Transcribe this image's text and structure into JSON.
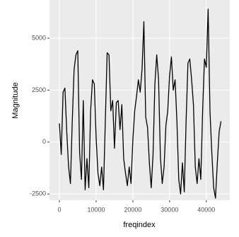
{
  "chart_data": {
    "type": "line",
    "x_label": "freqindex",
    "y_label": "Magnitude",
    "x": [
      0,
      500,
      1000,
      1500,
      2000,
      2500,
      3000,
      3500,
      4000,
      4500,
      5000,
      5500,
      6000,
      6500,
      7000,
      7500,
      8000,
      8500,
      9000,
      9500,
      10000,
      10500,
      11000,
      11500,
      12000,
      12500,
      13000,
      13500,
      14000,
      14500,
      15000,
      15500,
      16000,
      16500,
      17000,
      17500,
      18000,
      18500,
      19000,
      19500,
      20000,
      20500,
      21000,
      21500,
      22000,
      22500,
      23000,
      23500,
      24000,
      24500,
      25000,
      25500,
      26000,
      26500,
      27000,
      27500,
      28000,
      28500,
      29000,
      29500,
      30000,
      30500,
      31000,
      31500,
      32000,
      32500,
      33000,
      33500,
      34000,
      34500,
      35000,
      35500,
      36000,
      36500,
      37000,
      37500,
      38000,
      38500,
      39000,
      39500,
      40000,
      40500,
      41000,
      41500,
      42000,
      42500,
      43000,
      43500,
      44000
    ],
    "series": [
      {
        "color": "#000000",
        "values": [
          900,
          -600,
          2400,
          2600,
          500,
          -1200,
          -2000,
          1000,
          3500,
          4200,
          4400,
          -500,
          -1800,
          2000,
          -2300,
          -800,
          -2200,
          1500,
          3000,
          2800,
          200,
          -1500,
          -2100,
          -1200,
          -2300,
          1000,
          4300,
          4200,
          1500,
          2000,
          -300,
          1900,
          2000,
          600,
          1800,
          -800,
          -1500,
          -2100,
          -1200,
          -2000,
          100,
          1500,
          2200,
          3000,
          2400,
          3500,
          5800,
          1200,
          700,
          -1000,
          -2200,
          -600,
          2800,
          4200,
          3000,
          -700,
          -2000,
          -1200,
          800,
          1500,
          3200,
          4100,
          2500,
          3000,
          1000,
          -1800,
          -2500,
          -1000,
          -2400,
          1000,
          3800,
          4000,
          3000,
          1800,
          -1200,
          -2000,
          -800,
          -1800,
          1500,
          4000,
          3600,
          6400,
          1500,
          -500,
          -2200,
          -2700,
          -1000,
          500,
          1000
        ]
      }
    ],
    "xlim": [
      -2700,
      46400
    ],
    "ylim": [
      -2800,
      6840
    ],
    "xticks": [
      0,
      10000,
      20000,
      30000,
      40000
    ],
    "yticks": [
      -2500,
      0,
      2500,
      5000
    ],
    "grid": true
  }
}
